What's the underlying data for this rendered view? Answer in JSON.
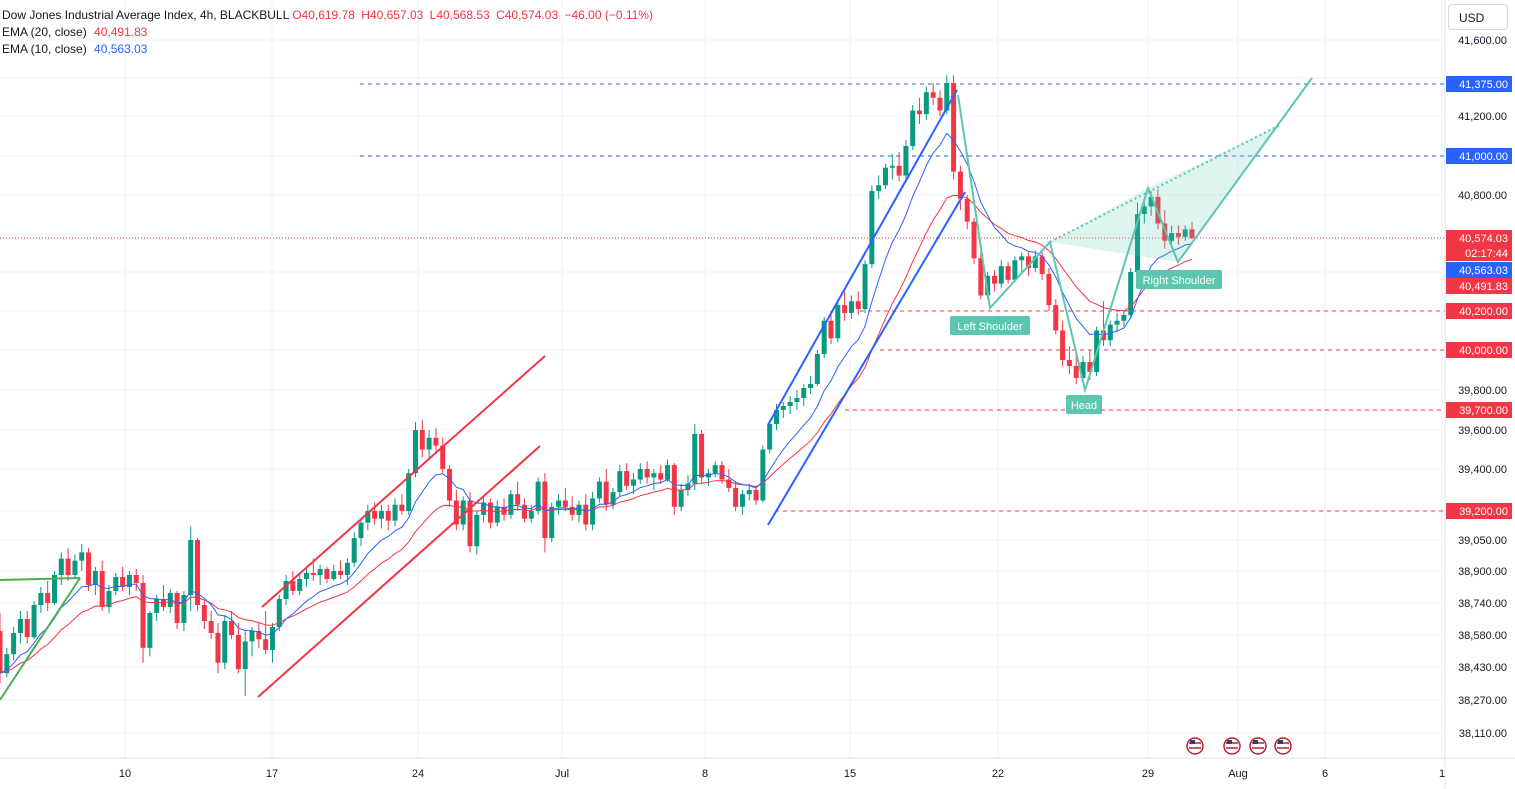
{
  "legend": {
    "symbol": "Dow Jones Industrial Average Index, 4h, BLACKBULL",
    "open": "O40,619.78",
    "high": "H40,657.03",
    "low": "L40,568.53",
    "close": "C40,574.03",
    "change": "−46.00 (−0.11%)",
    "ema20_label": "EMA (20, close)",
    "ema20_value": "40,491.83",
    "ema10_label": "EMA (10, close)",
    "ema10_value": "40,563.03"
  },
  "currency": "USD",
  "colors": {
    "up": "#089981",
    "down": "#f23645",
    "ema20": "#f23645",
    "ema10": "#2962ff",
    "channel_red": "#f23645",
    "channel_blue": "#2962ff",
    "pattern": "#5cc6b0",
    "grid": "#f0f3fa"
  },
  "chart_data": {
    "type": "candlestick",
    "timeframe": "4h",
    "y_ticks": [
      "41,600.00",
      "41,200.00",
      "40,800.00",
      "39,800.00",
      "39,600.00",
      "39,400.00",
      "39,050.00",
      "38,900.00",
      "38,740.00",
      "38,580.00",
      "38,430.00",
      "38,270.00",
      "38,110.00"
    ],
    "x_ticks": [
      "10",
      "17",
      "24",
      "Jul",
      "8",
      "15",
      "22",
      "29",
      "Aug",
      "6",
      "1"
    ],
    "price_tags": [
      {
        "text": "41,375.00",
        "value": 41375,
        "color": "#2962ff"
      },
      {
        "text": "41,000.00",
        "value": 41000,
        "color": "#2962ff"
      },
      {
        "text": "40,574.03",
        "value": 40574.03,
        "color": "#f23645"
      },
      {
        "text": "02:17:44",
        "value": 40535,
        "color": "#f23645"
      },
      {
        "text": "40,563.03",
        "value": 40563.03,
        "color": "#2962ff"
      },
      {
        "text": "40,491.83",
        "value": 40491.83,
        "color": "#f23645"
      },
      {
        "text": "40,200.00",
        "value": 40200,
        "color": "#f23645"
      },
      {
        "text": "40,000.00",
        "value": 40000,
        "color": "#f23645"
      },
      {
        "text": "39,700.00",
        "value": 39700,
        "color": "#f23645"
      },
      {
        "text": "39,200.00",
        "value": 39200,
        "color": "#f23645"
      }
    ],
    "pattern_labels": [
      "Left Shoulder",
      "Head",
      "Right Shoulder"
    ],
    "horizontal_levels": [
      {
        "value": 41375,
        "color": "#2962ff"
      },
      {
        "value": 41000,
        "color": "#2962ff"
      },
      {
        "value": 40200,
        "color": "#f23645"
      },
      {
        "value": 40000,
        "color": "#f23645"
      },
      {
        "value": 39700,
        "color": "#f23645"
      },
      {
        "value": 39200,
        "color": "#f23645"
      }
    ],
    "current_price": 40574.03,
    "candles": [
      [
        38600,
        38690,
        38350,
        38400
      ],
      [
        38400,
        38520,
        38380,
        38490
      ],
      [
        38490,
        38620,
        38460,
        38590
      ],
      [
        38590,
        38700,
        38540,
        38660
      ],
      [
        38660,
        38700,
        38540,
        38570
      ],
      [
        38570,
        38750,
        38560,
        38730
      ],
      [
        38730,
        38820,
        38690,
        38790
      ],
      [
        38790,
        38850,
        38700,
        38740
      ],
      [
        38740,
        38900,
        38730,
        38880
      ],
      [
        38880,
        38990,
        38830,
        38960
      ],
      [
        38960,
        39010,
        38850,
        38880
      ],
      [
        38880,
        38980,
        38860,
        38950
      ],
      [
        38950,
        39030,
        38900,
        38990
      ],
      [
        38990,
        39010,
        38800,
        38830
      ],
      [
        38830,
        38920,
        38780,
        38900
      ],
      [
        38900,
        38950,
        38700,
        38720
      ],
      [
        38720,
        38830,
        38690,
        38800
      ],
      [
        38800,
        38890,
        38780,
        38870
      ],
      [
        38870,
        38920,
        38800,
        38820
      ],
      [
        38820,
        38900,
        38780,
        38880
      ],
      [
        38880,
        38910,
        38800,
        38840
      ],
      [
        38840,
        38880,
        38450,
        38520
      ],
      [
        38520,
        38700,
        38480,
        38690
      ],
      [
        38690,
        38780,
        38650,
        38760
      ],
      [
        38760,
        38830,
        38700,
        38720
      ],
      [
        38720,
        38810,
        38690,
        38790
      ],
      [
        38790,
        38800,
        38610,
        38640
      ],
      [
        38640,
        38800,
        38600,
        38780
      ],
      [
        38780,
        39120,
        38700,
        39050
      ],
      [
        39050,
        39060,
        38700,
        38730
      ],
      [
        38730,
        38750,
        38610,
        38650
      ],
      [
        38650,
        38700,
        38560,
        38590
      ],
      [
        38590,
        38640,
        38400,
        38450
      ],
      [
        38450,
        38680,
        38420,
        38650
      ],
      [
        38650,
        38700,
        38560,
        38580
      ],
      [
        38580,
        38640,
        38400,
        38420
      ],
      [
        38420,
        38600,
        38290,
        38550
      ],
      [
        38550,
        38620,
        38480,
        38600
      ],
      [
        38600,
        38640,
        38520,
        38560
      ],
      [
        38560,
        38700,
        38490,
        38510
      ],
      [
        38510,
        38640,
        38450,
        38620
      ],
      [
        38620,
        38780,
        38600,
        38760
      ],
      [
        38760,
        38880,
        38730,
        38850
      ],
      [
        38850,
        38900,
        38780,
        38800
      ],
      [
        38800,
        38880,
        38780,
        38860
      ],
      [
        38860,
        38920,
        38820,
        38890
      ],
      [
        38890,
        38960,
        38850,
        38880
      ],
      [
        38880,
        38930,
        38830,
        38910
      ],
      [
        38910,
        38920,
        38840,
        38860
      ],
      [
        38860,
        38930,
        38850,
        38900
      ],
      [
        38900,
        38950,
        38860,
        38880
      ],
      [
        38880,
        38960,
        38830,
        38940
      ],
      [
        38940,
        39090,
        38920,
        39060
      ],
      [
        39060,
        39160,
        39020,
        39140
      ],
      [
        39140,
        39230,
        39100,
        39200
      ],
      [
        39200,
        39240,
        39130,
        39160
      ],
      [
        39160,
        39230,
        39110,
        39200
      ],
      [
        39200,
        39230,
        39100,
        39150
      ],
      [
        39150,
        39260,
        39120,
        39230
      ],
      [
        39230,
        39280,
        39180,
        39200
      ],
      [
        39200,
        39400,
        39180,
        39380
      ],
      [
        39380,
        39640,
        39360,
        39600
      ],
      [
        39600,
        39650,
        39460,
        39500
      ],
      [
        39500,
        39600,
        39450,
        39560
      ],
      [
        39560,
        39610,
        39480,
        39520
      ],
      [
        39520,
        39560,
        39380,
        39400
      ],
      [
        39400,
        39420,
        39220,
        39250
      ],
      [
        39250,
        39300,
        39100,
        39130
      ],
      [
        39130,
        39270,
        39100,
        39250
      ],
      [
        39250,
        39290,
        38990,
        39020
      ],
      [
        39020,
        39200,
        38980,
        39180
      ],
      [
        39180,
        39270,
        39140,
        39240
      ],
      [
        39240,
        39260,
        39110,
        39140
      ],
      [
        39140,
        39250,
        39120,
        39220
      ],
      [
        39220,
        39260,
        39150,
        39180
      ],
      [
        39180,
        39300,
        39160,
        39280
      ],
      [
        39280,
        39340,
        39200,
        39230
      ],
      [
        39230,
        39260,
        39140,
        39160
      ],
      [
        39160,
        39230,
        39140,
        39200
      ],
      [
        39200,
        39360,
        39180,
        39340
      ],
      [
        39340,
        39380,
        38990,
        39060
      ],
      [
        39060,
        39240,
        39040,
        39220
      ],
      [
        39220,
        39280,
        39180,
        39250
      ],
      [
        39250,
        39310,
        39200,
        39220
      ],
      [
        39220,
        39270,
        39150,
        39180
      ],
      [
        39180,
        39250,
        39140,
        39230
      ],
      [
        39230,
        39280,
        39100,
        39130
      ],
      [
        39130,
        39290,
        39100,
        39260
      ],
      [
        39260,
        39360,
        39240,
        39340
      ],
      [
        39340,
        39400,
        39200,
        39230
      ],
      [
        39230,
        39310,
        39210,
        39290
      ],
      [
        39290,
        39420,
        39270,
        39390
      ],
      [
        39390,
        39430,
        39300,
        39320
      ],
      [
        39320,
        39380,
        39280,
        39350
      ],
      [
        39350,
        39430,
        39330,
        39400
      ],
      [
        39400,
        39440,
        39330,
        39360
      ],
      [
        39360,
        39400,
        39300,
        39380
      ],
      [
        39380,
        39420,
        39330,
        39350
      ],
      [
        39350,
        39450,
        39340,
        39420
      ],
      [
        39420,
        39430,
        39180,
        39220
      ],
      [
        39220,
        39330,
        39200,
        39300
      ],
      [
        39300,
        39370,
        39270,
        39330
      ],
      [
        39330,
        39630,
        39300,
        39580
      ],
      [
        39580,
        39600,
        39330,
        39360
      ],
      [
        39360,
        39400,
        39320,
        39380
      ],
      [
        39380,
        39440,
        39360,
        39420
      ],
      [
        39420,
        39440,
        39330,
        39350
      ],
      [
        39350,
        39400,
        39290,
        39310
      ],
      [
        39310,
        39340,
        39200,
        39220
      ],
      [
        39220,
        39300,
        39180,
        39280
      ],
      [
        39280,
        39330,
        39250,
        39300
      ],
      [
        39300,
        39320,
        39230,
        39250
      ],
      [
        39250,
        39520,
        39240,
        39500
      ],
      [
        39500,
        39650,
        39480,
        39630
      ],
      [
        39630,
        39730,
        39600,
        39700
      ],
      [
        39700,
        39740,
        39660,
        39720
      ],
      [
        39720,
        39770,
        39680,
        39740
      ],
      [
        39740,
        39800,
        39700,
        39760
      ],
      [
        39760,
        39830,
        39720,
        39810
      ],
      [
        39810,
        39870,
        39780,
        39830
      ],
      [
        39830,
        40000,
        39820,
        39980
      ],
      [
        39980,
        40170,
        39960,
        40150
      ],
      [
        40150,
        40200,
        40030,
        40060
      ],
      [
        40060,
        40260,
        40040,
        40230
      ],
      [
        40230,
        40300,
        40150,
        40190
      ],
      [
        40190,
        40280,
        40160,
        40250
      ],
      [
        40250,
        40300,
        40180,
        40210
      ],
      [
        40210,
        40460,
        40190,
        40440
      ],
      [
        40440,
        40850,
        40420,
        40820
      ],
      [
        40820,
        40900,
        40780,
        40850
      ],
      [
        40850,
        40960,
        40830,
        40940
      ],
      [
        40940,
        41010,
        40880,
        40950
      ],
      [
        40950,
        41020,
        40870,
        40900
      ],
      [
        40900,
        41080,
        40880,
        41050
      ],
      [
        41050,
        41260,
        41030,
        41230
      ],
      [
        41230,
        41300,
        41160,
        41210
      ],
      [
        41210,
        41360,
        41180,
        41330
      ],
      [
        41330,
        41380,
        41260,
        41300
      ],
      [
        41300,
        41340,
        41200,
        41230
      ],
      [
        41230,
        41420,
        41210,
        41380
      ],
      [
        41380,
        41420,
        40880,
        40920
      ],
      [
        40920,
        40950,
        40720,
        40780
      ],
      [
        40780,
        40800,
        40620,
        40660
      ],
      [
        40660,
        40680,
        40440,
        40470
      ],
      [
        40470,
        40500,
        40260,
        40280
      ],
      [
        40280,
        40400,
        40260,
        40380
      ],
      [
        40380,
        40410,
        40300,
        40340
      ],
      [
        40340,
        40460,
        40320,
        40430
      ],
      [
        40430,
        40450,
        40340,
        40360
      ],
      [
        40360,
        40480,
        40350,
        40460
      ],
      [
        40460,
        40500,
        40400,
        40480
      ],
      [
        40480,
        40500,
        40380,
        40420
      ],
      [
        40420,
        40510,
        40400,
        40480
      ],
      [
        40480,
        40500,
        40360,
        40390
      ],
      [
        40390,
        40420,
        40200,
        40230
      ],
      [
        40230,
        40260,
        40080,
        40100
      ],
      [
        40100,
        40150,
        39920,
        39950
      ],
      [
        39950,
        40020,
        39880,
        39920
      ],
      [
        39920,
        39980,
        39830,
        39860
      ],
      [
        39860,
        39970,
        39840,
        39940
      ],
      [
        39940,
        40000,
        39850,
        39890
      ],
      [
        39890,
        40120,
        39870,
        40100
      ],
      [
        40100,
        40250,
        40020,
        40050
      ],
      [
        40050,
        40150,
        40020,
        40130
      ],
      [
        40130,
        40190,
        40090,
        40150
      ],
      [
        40150,
        40200,
        40120,
        40180
      ],
      [
        40180,
        40420,
        40160,
        40400
      ],
      [
        40400,
        40760,
        40380,
        40700
      ],
      [
        40700,
        40780,
        40650,
        40740
      ],
      [
        40740,
        40820,
        40690,
        40790
      ],
      [
        40790,
        40830,
        40620,
        40650
      ],
      [
        40650,
        40720,
        40520,
        40560
      ],
      [
        40560,
        40640,
        40520,
        40600
      ],
      [
        40600,
        40640,
        40540,
        40580
      ],
      [
        40580,
        40640,
        40560,
        40620
      ],
      [
        40619.78,
        40657.03,
        40568.53,
        40574.03
      ]
    ]
  }
}
